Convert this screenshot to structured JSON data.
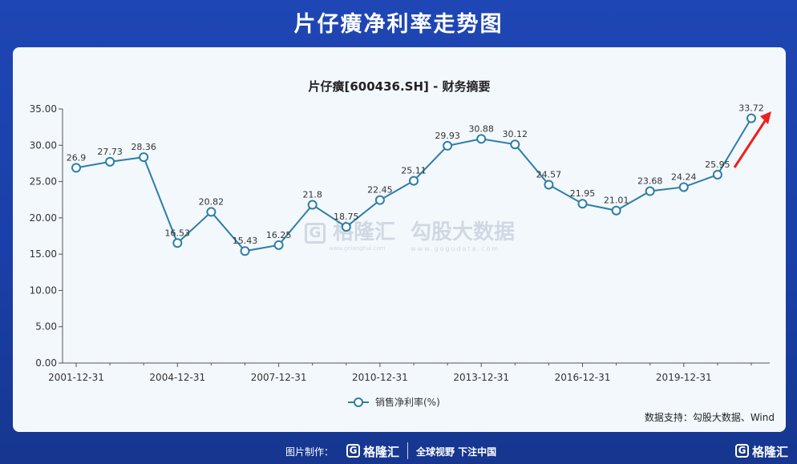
{
  "page": {
    "title": "片仔癀净利率走势图",
    "source": "数据支持：勾股大数据、Wind"
  },
  "watermark": {
    "brand_left": "格隆汇",
    "brand_left_url": "www.gelonghui.com",
    "brand_right": "勾股大数据",
    "brand_right_url": "www.gogudata.com"
  },
  "footer": {
    "made_by": "图片制作：",
    "logo_glyph": "G",
    "brand": "格隆汇",
    "slogan": "全球视野 下注中国",
    "brand_right": "格隆汇"
  },
  "chart_data": {
    "type": "line",
    "title": "片仔癀[600436.SH] - 财务摘要",
    "xlabel": "",
    "ylabel": "",
    "ylim": [
      0,
      35
    ],
    "yticks": [
      "0.00",
      "5.00",
      "10.00",
      "15.00",
      "20.00",
      "25.00",
      "30.00",
      "35.00"
    ],
    "ytick_values": [
      0,
      5,
      10,
      15,
      20,
      25,
      30,
      35
    ],
    "x": [
      "2001-12-31",
      "2002-12-31",
      "2003-12-31",
      "2004-12-31",
      "2005-12-31",
      "2006-12-31",
      "2007-12-31",
      "2008-12-31",
      "2009-12-31",
      "2010-12-31",
      "2011-12-31",
      "2012-12-31",
      "2013-12-31",
      "2014-12-31",
      "2015-12-31",
      "2016-12-31",
      "2017-12-31",
      "2018-12-31",
      "2019-12-31",
      "2020-12-31",
      "2021-12-31"
    ],
    "xtick_labels": [
      "2001-12-31",
      "2004-12-31",
      "2007-12-31",
      "2010-12-31",
      "2013-12-31",
      "2016-12-31",
      "2019-12-31"
    ],
    "series": [
      {
        "name": "销售净利率(%)",
        "values": [
          26.9,
          27.73,
          28.36,
          16.53,
          20.82,
          15.43,
          16.25,
          21.8,
          18.75,
          22.45,
          25.11,
          29.93,
          30.88,
          30.12,
          24.57,
          21.95,
          21.01,
          23.68,
          24.24,
          25.95,
          33.72
        ],
        "labels": [
          "26.9",
          "27.73",
          "28.36",
          "16.53",
          "20.82",
          "15.43",
          "16.25",
          "21.8",
          "18.75",
          "22.45",
          "25.11",
          "29.93",
          "30.88",
          "30.12",
          "24.57",
          "21.95",
          "21.01",
          "23.68",
          "24.24",
          "25.95",
          "33.72"
        ]
      }
    ],
    "grid": false,
    "legend_position": "bottom-center",
    "colors": {
      "line": "#2b7ea6",
      "marker_fill": "#ffffff",
      "arrow": "#e8231e",
      "axis": "#555555"
    }
  }
}
